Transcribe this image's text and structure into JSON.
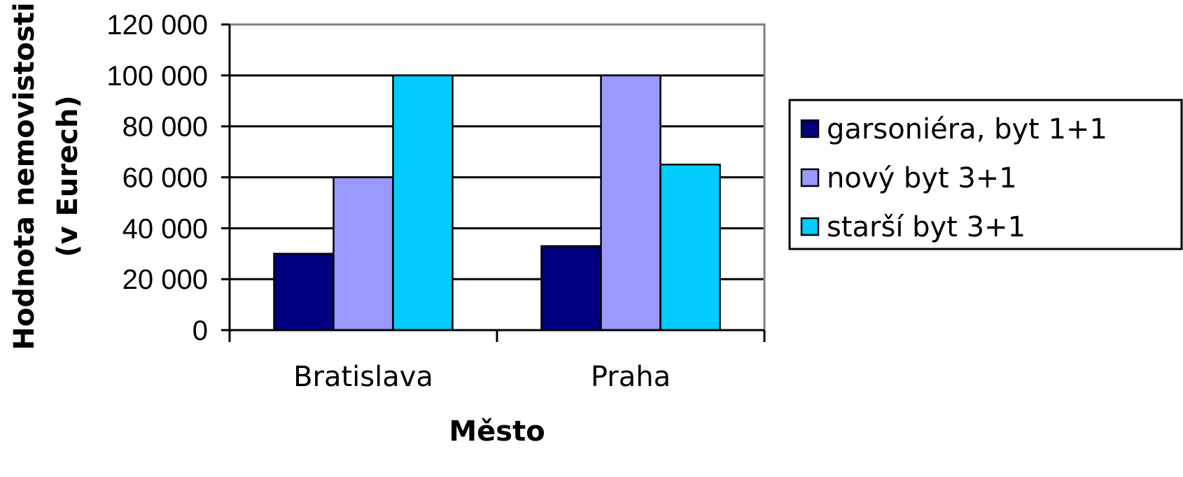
{
  "chart_data": {
    "type": "bar",
    "categories": [
      "Bratislava",
      "Praha"
    ],
    "series": [
      {
        "name": "garsoniéra, byt 1+1",
        "values": [
          30000,
          33000
        ],
        "color": "#000080"
      },
      {
        "name": "nový byt 3+1",
        "values": [
          60000,
          100000
        ],
        "color": "#9999FF"
      },
      {
        "name": "starší byt 3+1",
        "values": [
          100000,
          65000
        ],
        "color": "#00CCFF"
      }
    ],
    "yticks": [
      "0",
      "20 000",
      "40 000",
      "60 000",
      "80 000",
      "100 000",
      "120 000"
    ],
    "ylim": [
      0,
      120000
    ],
    "xlabel": "Město",
    "ylabel_lines": [
      "Hodnota nemovistosti",
      "(v Eurech)"
    ],
    "grid": true,
    "legend": "right"
  }
}
